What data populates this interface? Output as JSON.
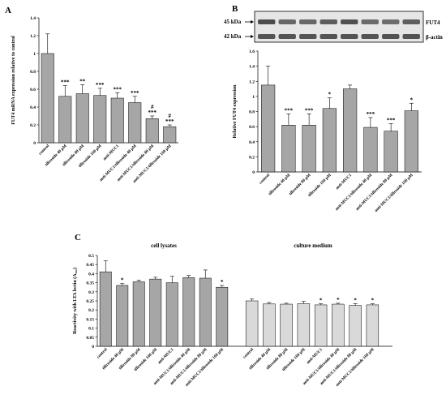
{
  "colors": {
    "bar_gray": "#a6a6a6",
    "bar_light": "#d9d9d9",
    "axis": "#000000",
    "blot_bg": "#e6e6e6",
    "band": "#3a3a3a"
  },
  "panels": {
    "A": {
      "letter": "A"
    },
    "B": {
      "letter": "B",
      "blot": {
        "marker_top": "45 kDa",
        "marker_bottom": "42 kDa",
        "protein_top": "FUT4",
        "protein_bottom": "β-actin"
      }
    },
    "C": {
      "letter": "C"
    }
  },
  "chart_data": [
    {
      "id": "A",
      "type": "bar",
      "ylabel": "FUT4 mRNA expression relative to control",
      "ylim": [
        0,
        1.4
      ],
      "yticks": [
        "0",
        "0.2",
        "0.4",
        "0.6",
        "0.8",
        "1",
        "1.2",
        "1.4"
      ],
      "categories": [
        "control",
        "tiliroside 40 μM",
        "tiliroside 80 μM",
        "tiliroside 160 μM",
        "anti-MUC1",
        "anti-MUC1/tiliroside 40 μM",
        "anti-MUC1/tiliroside 80 μM",
        "anti-MUC1/tiliroside 160 μM"
      ],
      "values": [
        1.0,
        0.52,
        0.55,
        0.53,
        0.5,
        0.45,
        0.27,
        0.18
      ],
      "errors": [
        0.22,
        0.12,
        0.1,
        0.08,
        0.06,
        0.07,
        0.03,
        0.02
      ],
      "annotations": [
        "",
        "***",
        "**",
        "***",
        "***",
        "***",
        "#\n***",
        "#\n***"
      ]
    },
    {
      "id": "B",
      "type": "bar",
      "ylabel": "Relative FUT4 expression",
      "ylim": [
        0,
        1.6
      ],
      "yticks": [
        "0",
        "0.2",
        "0.4",
        "0.6",
        "0.8",
        "1",
        "1.2",
        "1.4",
        "1.6"
      ],
      "categories": [
        "control",
        "tiliroside 40 μM",
        "tiliroside 80 μM",
        "tiliroside 160 μM",
        "anti-MUC1",
        "anti-MUC1/tiliroside 40 μM",
        "anti-MUC1/tiliroside 80 μM",
        "anti-MUC1/tiliroside 160 μM"
      ],
      "values": [
        1.15,
        0.62,
        0.62,
        0.84,
        1.1,
        0.59,
        0.54,
        0.81
      ],
      "errors": [
        0.25,
        0.15,
        0.15,
        0.14,
        0.05,
        0.13,
        0.1,
        0.1
      ],
      "annotations": [
        "",
        "***",
        "***",
        "*",
        "",
        "***",
        "***",
        "*"
      ]
    },
    {
      "id": "C",
      "type": "bar",
      "ylabel": "Reactivity with LTA lectin (A₄₅₀)",
      "ylim": [
        0,
        0.5
      ],
      "yticks": [
        "0",
        "0.05",
        "0.1",
        "0.15",
        "0.2",
        "0.25",
        "0.3",
        "0.35",
        "0.4",
        "0.45",
        "0.5"
      ],
      "groups": [
        {
          "title": "cell lysates",
          "categories": [
            "control",
            "tiliroside 40 μM",
            "tiliroside 80 μM",
            "tiliroside 160 μM",
            "anti-MUC1",
            "anti-MUC1/tiliroside 40 μM",
            "anti-MUC1/tiliroside 80 μM",
            "anti-MUC1/tiliroside 160 μM"
          ],
          "values": [
            0.41,
            0.335,
            0.355,
            0.37,
            0.35,
            0.378,
            0.375,
            0.325
          ],
          "errors": [
            0.06,
            0.01,
            0.008,
            0.01,
            0.035,
            0.012,
            0.045,
            0.01
          ],
          "annotations": [
            "",
            "*",
            "",
            "",
            "",
            "",
            "",
            "*"
          ]
        },
        {
          "title": "culture medium",
          "categories": [
            "control",
            "tiliroside 40 μM",
            "tiliroside 80 μM",
            "tiliroside 160 μM",
            "anti-MUC1",
            "anti-MUC1/tiliroside 40 μM",
            "anti-MUC1/tiliroside 80 μM",
            "anti-MUC1/tiliroside 160 μM"
          ],
          "values": [
            0.25,
            0.233,
            0.232,
            0.235,
            0.228,
            0.232,
            0.225,
            0.228
          ],
          "errors": [
            0.01,
            0.008,
            0.005,
            0.012,
            0.006,
            0.005,
            0.01,
            0.006
          ],
          "annotations": [
            "",
            "",
            "",
            "",
            "*",
            "*",
            "*",
            "*"
          ]
        }
      ]
    }
  ]
}
